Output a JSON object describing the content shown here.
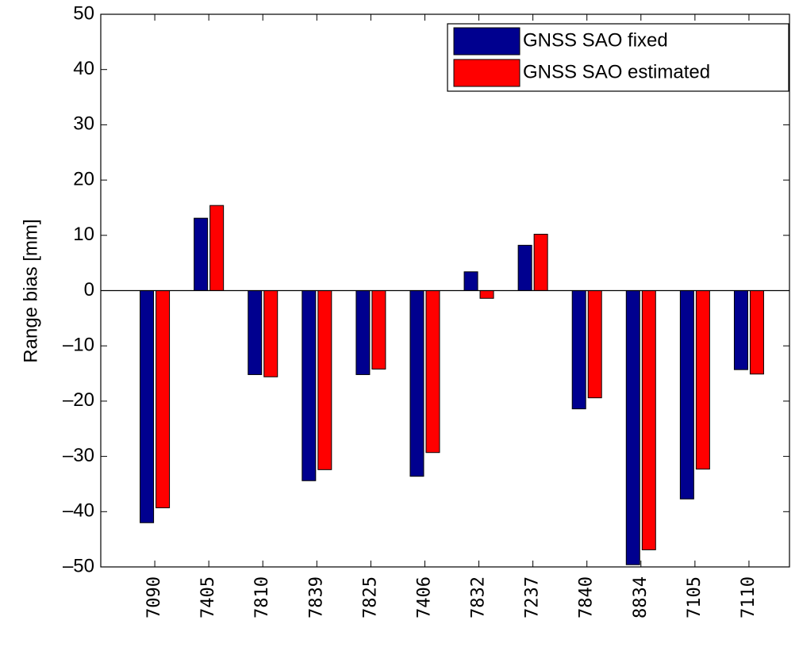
{
  "chart_data": {
    "type": "bar",
    "y_label": "Range bias [mm]",
    "categories": [
      "7090",
      "7405",
      "7810",
      "7839",
      "7825",
      "7406",
      "7832",
      "7237",
      "7840",
      "8834",
      "7105",
      "7110"
    ],
    "series": [
      {
        "name": "GNSS SAO fixed",
        "color": "#00008f",
        "values": [
          -42,
          13.1,
          -15.2,
          -34.4,
          -15.2,
          -33.6,
          3.4,
          8.2,
          -21.4,
          -49.6,
          -37.7,
          -14.3
        ]
      },
      {
        "name": "GNSS SAO estimated",
        "color": "#ff0000",
        "values": [
          -39.3,
          15.4,
          -15.6,
          -32.4,
          -14.2,
          -29.3,
          -1.4,
          10.2,
          -19.4,
          -46.9,
          -32.3,
          -15.1
        ]
      }
    ],
    "ylim": [
      -50,
      50
    ],
    "yticks": [
      {
        "value": -50,
        "label": "–50"
      },
      {
        "value": -40,
        "label": "–40"
      },
      {
        "value": -30,
        "label": "–30"
      },
      {
        "value": -20,
        "label": "–20"
      },
      {
        "value": -10,
        "label": "–10"
      },
      0,
      10,
      20,
      30,
      40,
      50
    ],
    "legend": "top-right"
  }
}
